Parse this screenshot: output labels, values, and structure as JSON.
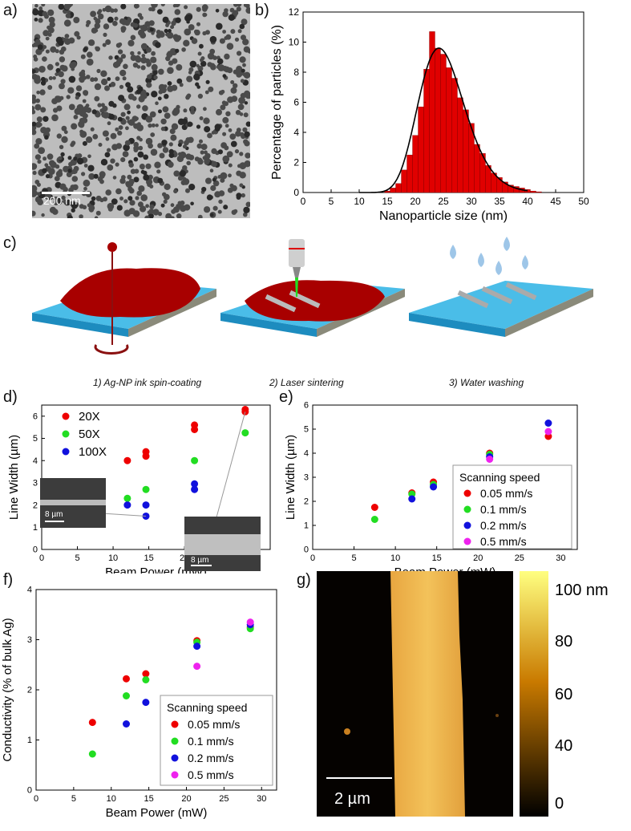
{
  "panel_labels": {
    "a": "a)",
    "b": "b)",
    "c": "c)",
    "d": "d)",
    "e": "e)",
    "f": "f)",
    "g": "g)"
  },
  "tem": {
    "scalebar": "200 nm"
  },
  "captions": [
    "1) Ag-NP ink spin-coating",
    "2) Laser sintering",
    "3) Water washing"
  ],
  "insets": {
    "left_scale": "8 µm",
    "right_scale": "8 µm"
  },
  "afm": {
    "scalebar": "2 µm",
    "colorbar_ticks": [
      "100 nm",
      "80",
      "60",
      "40",
      "0"
    ],
    "colors": {
      "low": "#000000",
      "mid": "#c97a00",
      "high": "#ffff80"
    }
  },
  "chart_data": [
    {
      "id": "b",
      "type": "bar",
      "xlabel": "Nanoparticle size (nm)",
      "ylabel": "Percentage of particles (%)",
      "xlim": [
        0,
        50
      ],
      "ylim": [
        0,
        12
      ],
      "xticks": [
        0,
        5,
        10,
        15,
        20,
        25,
        30,
        35,
        40,
        45,
        50
      ],
      "yticks": [
        0,
        2,
        4,
        6,
        8,
        10,
        12
      ],
      "bin_width": 1,
      "bins": [
        [
          15,
          0.1
        ],
        [
          16,
          0.3
        ],
        [
          17,
          0.6
        ],
        [
          18,
          1.5
        ],
        [
          19,
          2.5
        ],
        [
          20,
          3.8
        ],
        [
          21,
          5.7
        ],
        [
          22,
          8.2
        ],
        [
          23,
          10.7
        ],
        [
          24,
          9.6
        ],
        [
          25,
          9.2
        ],
        [
          26,
          8.3
        ],
        [
          27,
          7.6
        ],
        [
          28,
          6.3
        ],
        [
          29,
          5.5
        ],
        [
          30,
          4.6
        ],
        [
          31,
          3.2
        ],
        [
          32,
          2.6
        ],
        [
          33,
          1.8
        ],
        [
          34,
          1.3
        ],
        [
          35,
          1.0
        ],
        [
          36,
          0.7
        ],
        [
          37,
          0.5
        ],
        [
          38,
          0.4
        ],
        [
          39,
          0.3
        ],
        [
          40,
          0.2
        ],
        [
          41,
          0.1
        ],
        [
          42,
          0.05
        ]
      ],
      "fit": {
        "type": "lognormal",
        "mu": 24.2,
        "sigma": 4.1,
        "peak": 9.6
      },
      "colors": {
        "bar": "#e00000",
        "fit": "#000000"
      }
    },
    {
      "id": "d",
      "type": "scatter",
      "xlabel": "Beam Power (mW)",
      "ylabel": "Line Width (µm)",
      "xlim": [
        0,
        32
      ],
      "ylim": [
        0,
        6.5
      ],
      "xticks": [
        0,
        5,
        10,
        15,
        20,
        25,
        30
      ],
      "yticks": [
        0,
        1,
        2,
        3,
        4,
        5,
        6
      ],
      "legend_position": "top-left",
      "series": [
        {
          "name": "20X",
          "color": "#ee0000",
          "points": [
            [
              12,
              4.0
            ],
            [
              14.6,
              4.4
            ],
            [
              14.6,
              4.2
            ],
            [
              21.4,
              5.6
            ],
            [
              21.4,
              5.4
            ],
            [
              28.5,
              6.3
            ],
            [
              28.5,
              6.2
            ]
          ]
        },
        {
          "name": "50X",
          "color": "#22dd22",
          "points": [
            [
              7.5,
              1.3
            ],
            [
              12,
              2.3
            ],
            [
              14.6,
              2.7
            ],
            [
              21.4,
              4.0
            ],
            [
              28.5,
              5.25
            ]
          ]
        },
        {
          "name": "100X",
          "color": "#1111dd",
          "points": [
            [
              12,
              2.0
            ],
            [
              14.6,
              2.0
            ],
            [
              14.6,
              1.5
            ],
            [
              21.4,
              2.95
            ],
            [
              21.4,
              2.7
            ]
          ]
        }
      ]
    },
    {
      "id": "e",
      "type": "scatter",
      "xlabel": "Beam Power (mW)",
      "ylabel": "Line Width (µm)",
      "xlim": [
        0,
        32
      ],
      "ylim": [
        0,
        6
      ],
      "xticks": [
        0,
        5,
        10,
        15,
        20,
        25,
        30
      ],
      "yticks": [
        0,
        1,
        2,
        3,
        4,
        5,
        6
      ],
      "legend_title": "Scanning speed",
      "legend_position": "bottom-right",
      "series": [
        {
          "name": "0.05 mm/s",
          "color": "#ee0000",
          "points": [
            [
              7.5,
              1.75
            ],
            [
              12,
              2.35
            ],
            [
              14.6,
              2.8
            ],
            [
              21.4,
              4.0
            ],
            [
              28.5,
              4.7
            ]
          ]
        },
        {
          "name": "0.1 mm/s",
          "color": "#22dd22",
          "points": [
            [
              7.5,
              1.25
            ],
            [
              12,
              2.3
            ],
            [
              14.6,
              2.7
            ],
            [
              21.4,
              3.95
            ]
          ]
        },
        {
          "name": "0.2 mm/s",
          "color": "#1111dd",
          "points": [
            [
              12,
              2.1
            ],
            [
              14.6,
              2.6
            ],
            [
              21.4,
              3.85
            ],
            [
              28.5,
              5.25
            ]
          ]
        },
        {
          "name": "0.5 mm/s",
          "color": "#ee22ee",
          "points": [
            [
              21.4,
              3.75
            ],
            [
              28.5,
              4.9
            ]
          ]
        }
      ]
    },
    {
      "id": "f",
      "type": "scatter",
      "xlabel": "Beam Power (mW)",
      "ylabel": "Conductivity (% of bulk Ag)",
      "xlim": [
        0,
        32
      ],
      "ylim": [
        0,
        4
      ],
      "xticks": [
        0,
        5,
        10,
        15,
        20,
        25,
        30
      ],
      "yticks": [
        0,
        1,
        2,
        3,
        4
      ],
      "legend_title": "Scanning speed",
      "legend_position": "bottom-right",
      "series": [
        {
          "name": "0.05 mm/s",
          "color": "#ee0000",
          "points": [
            [
              7.5,
              1.35
            ],
            [
              12,
              2.22
            ],
            [
              14.6,
              2.32
            ],
            [
              21.4,
              2.98
            ],
            [
              28.5,
              3.25
            ]
          ]
        },
        {
          "name": "0.1 mm/s",
          "color": "#22dd22",
          "points": [
            [
              7.5,
              0.72
            ],
            [
              12,
              1.88
            ],
            [
              14.6,
              2.2
            ],
            [
              21.4,
              2.95
            ],
            [
              28.5,
              3.22
            ]
          ]
        },
        {
          "name": "0.2 mm/s",
          "color": "#1111dd",
          "points": [
            [
              12,
              1.32
            ],
            [
              14.6,
              1.75
            ],
            [
              21.4,
              2.87
            ],
            [
              28.5,
              3.3
            ]
          ]
        },
        {
          "name": "0.5 mm/s",
          "color": "#ee22ee",
          "points": [
            [
              21.4,
              2.47
            ],
            [
              28.5,
              3.35
            ]
          ]
        }
      ]
    }
  ]
}
